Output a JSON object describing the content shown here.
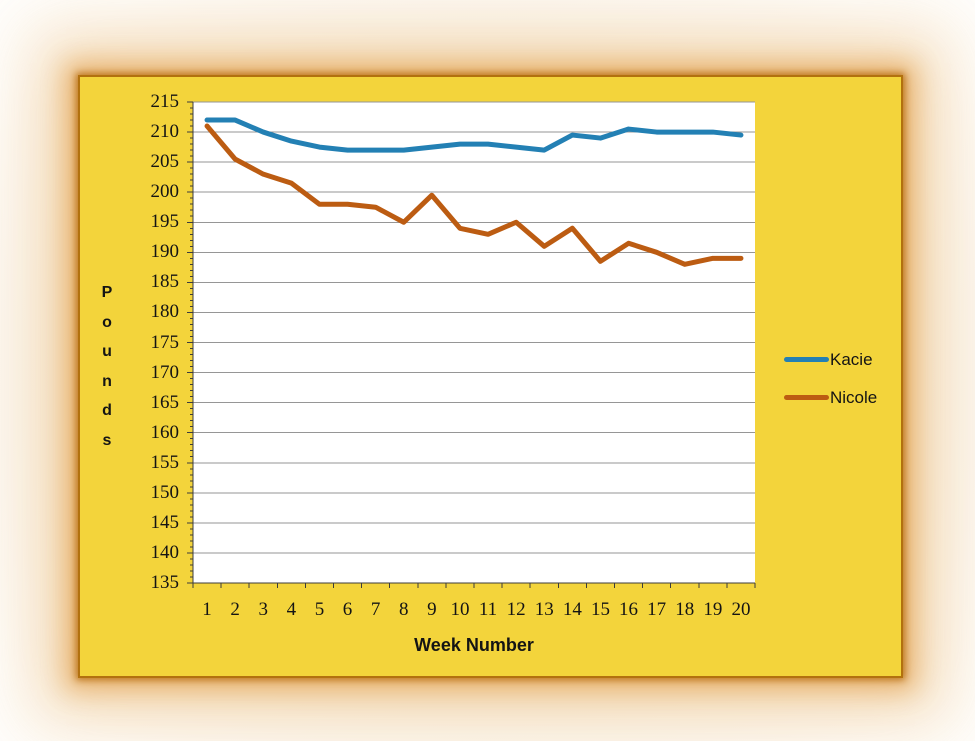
{
  "chart_data": {
    "type": "line",
    "title": "",
    "xlabel": "Week Number",
    "ylabel": "Pounds",
    "x_categories": [
      "1",
      "2",
      "3",
      "4",
      "5",
      "6",
      "7",
      "8",
      "9",
      "10",
      "11",
      "12",
      "13",
      "14",
      "15",
      "16",
      "17",
      "18",
      "19",
      "20"
    ],
    "yticks": [
      "215",
      "210",
      "205",
      "200",
      "195",
      "190",
      "185",
      "180",
      "175",
      "170",
      "165",
      "160",
      "155",
      "150",
      "145",
      "140",
      "135"
    ],
    "ylim": [
      135,
      215
    ],
    "ytick_step": 5,
    "grid": "horizontal-major",
    "legend_position": "right-middle",
    "series": [
      {
        "name": "Kacie",
        "color": "#2380B4",
        "values": [
          212,
          212,
          210,
          208.5,
          207.5,
          207,
          207,
          207,
          207.5,
          208,
          208,
          207.5,
          207,
          209.5,
          209,
          210.5,
          210,
          210,
          210,
          209.5
        ]
      },
      {
        "name": "Nicole",
        "color": "#BC5C12",
        "values": [
          211,
          205.5,
          203,
          201.5,
          198,
          198,
          197.5,
          195,
          199.5,
          194,
          193,
          195,
          191,
          194,
          188.5,
          191.5,
          190,
          188,
          189,
          189
        ]
      }
    ]
  },
  "colors": {
    "panel_background": "#F3D43B",
    "panel_border": "#B2710E",
    "plot_background": "#FFFFFF",
    "gridline": "#969696",
    "axis_line": "#3C3C3C",
    "text": "#141414",
    "glow": "#DD9336"
  }
}
